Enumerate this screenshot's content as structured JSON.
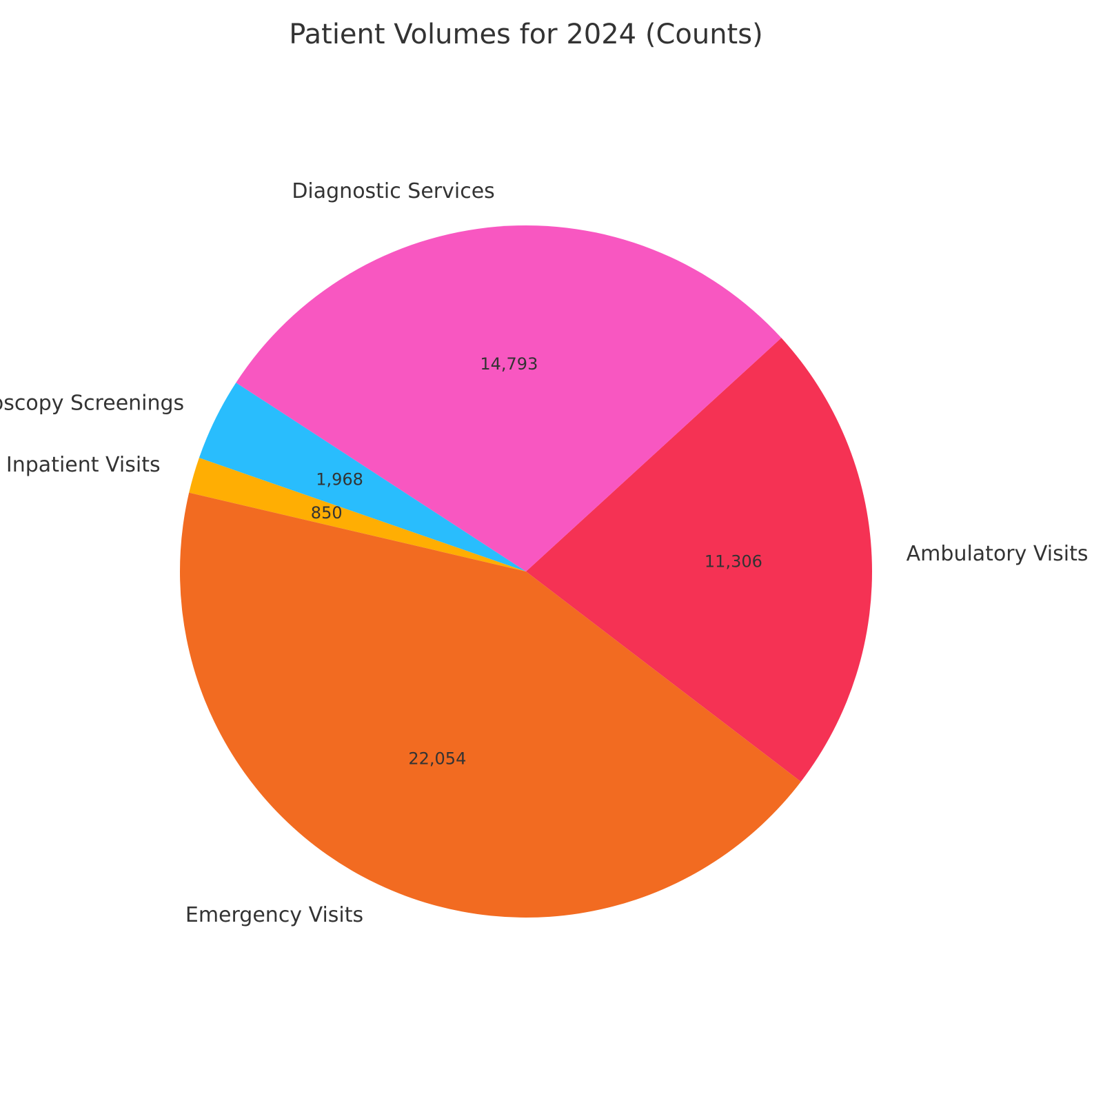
{
  "chart_data": {
    "type": "pie",
    "title": "Patient Volumes for 2024 (Counts)",
    "start_angle_deg": -37.4,
    "direction": "counterclockwise",
    "slices": [
      {
        "label": "Ambulatory Visits",
        "value": 11306,
        "value_label": "11,306",
        "color": "#F53254"
      },
      {
        "label": "Diagnostic Services",
        "value": 14793,
        "value_label": "14,793",
        "color": "#F857C1"
      },
      {
        "label": "Endoscopy Screenings",
        "value": 1968,
        "value_label": "1,968",
        "color": "#29BDFD"
      },
      {
        "label": "Inpatient Visits",
        "value": 850,
        "value_label": "850",
        "color": "#FFAE03"
      },
      {
        "label": "Emergency Visits",
        "value": 22054,
        "value_label": "22,054",
        "color": "#F26B21"
      }
    ]
  }
}
